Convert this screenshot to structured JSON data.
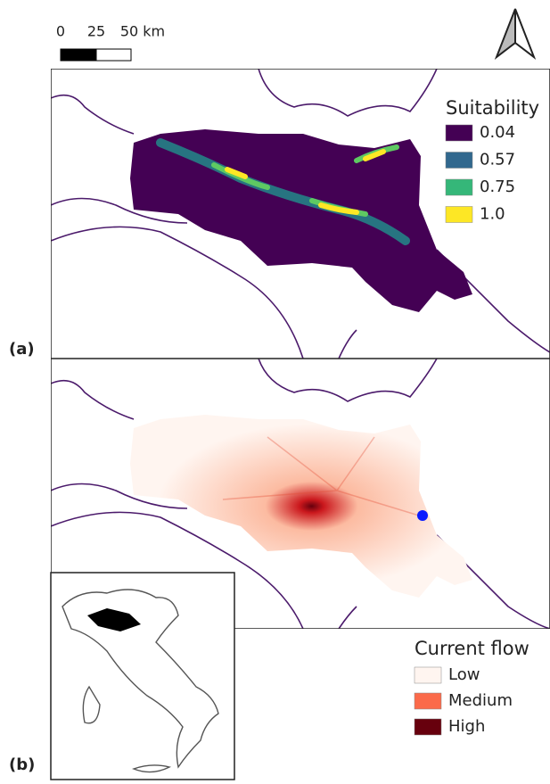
{
  "scale_bar": {
    "labels": [
      "0",
      "25",
      "50 km"
    ]
  },
  "panels": [
    {
      "label": "(a)",
      "legend": {
        "title": "Suitability",
        "items": [
          {
            "label": "0.04",
            "color": "#440154"
          },
          {
            "label": "0.57",
            "color": "#31688e"
          },
          {
            "label": "0.75",
            "color": "#35b779"
          },
          {
            "label": "1.0",
            "color": "#fde725"
          }
        ]
      }
    },
    {
      "label": "(b)",
      "legend": {
        "title": "Current flow",
        "items": [
          {
            "label": "Low",
            "color": "#fff5f0"
          },
          {
            "label": "Medium",
            "color": "#fb6a4a"
          },
          {
            "label": "High",
            "color": "#67000d"
          }
        ]
      }
    }
  ]
}
